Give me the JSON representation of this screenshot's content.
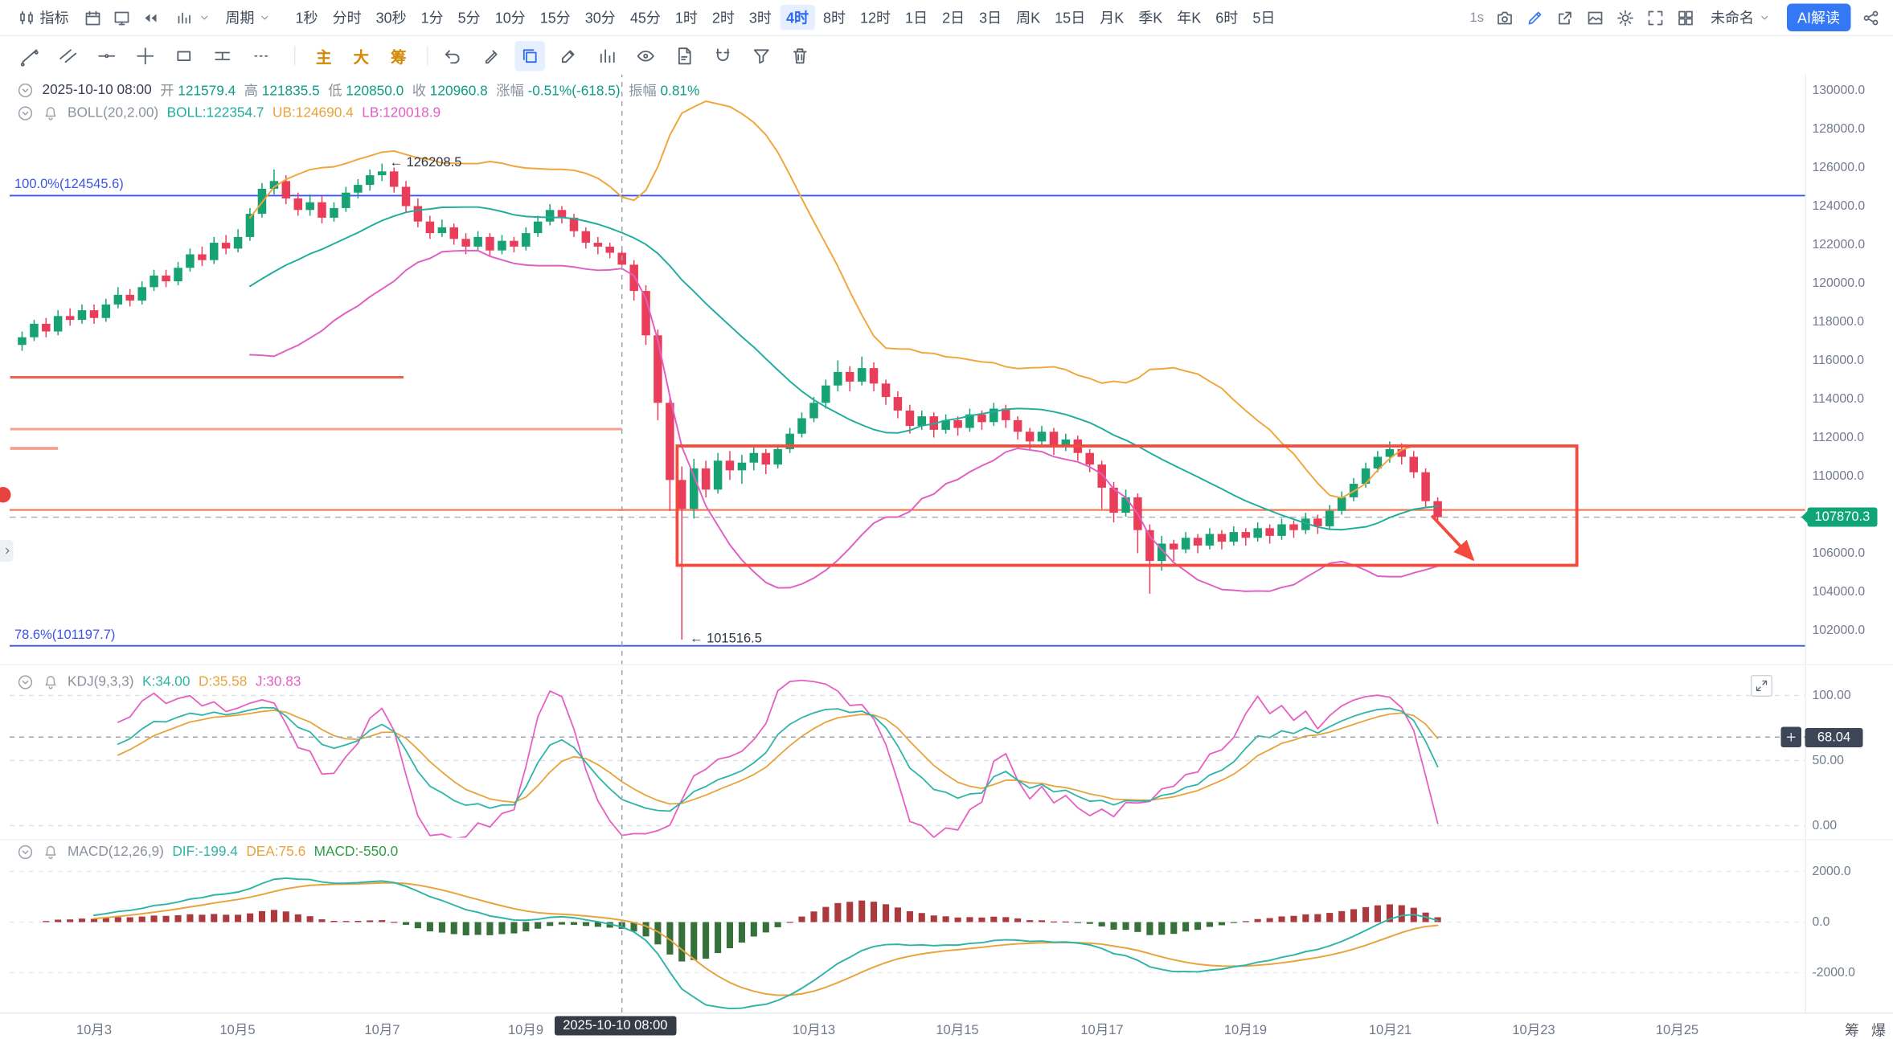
{
  "colors": {
    "up": "#16a273",
    "down": "#ea3d5a",
    "boll_mb": "#1fae9c",
    "boll_ub": "#f0a63a",
    "boll_lb": "#e05fc4",
    "kdj_k": "#2eb5a8",
    "kdj_d": "#e8a33c",
    "kdj_j": "#e75fc3",
    "macd_dif": "#2eb5a8",
    "macd_dea": "#e8a33c",
    "macd_up_bar": "#ab3a3e",
    "macd_down_bar": "#36703a",
    "accent_blue": "#3478f6",
    "drawing_red": "#f5493d",
    "fib_blue": "#3b55e6",
    "price_badge_bg": "#10a576"
  },
  "top_toolbar": {
    "indicator_label": "指标",
    "left_icons": [
      "calendar-icon",
      "monitor-icon",
      "rewind-icon"
    ],
    "period_label": "周期",
    "timeframes": [
      "1秒",
      "分时",
      "30秒",
      "1分",
      "5分",
      "10分",
      "15分",
      "30分",
      "45分",
      "1时",
      "2时",
      "3时",
      "4时",
      "8时",
      "12时",
      "1日",
      "2日",
      "3日",
      "周K",
      "15日",
      "月K",
      "季K",
      "年K",
      "6时",
      "5日"
    ],
    "selected_timeframe": "4时",
    "right": {
      "resolution_label": "1s",
      "icons": [
        "camera-icon",
        "pencil-icon",
        "popout-icon",
        "image-icon",
        "gear-icon",
        "expand-icon",
        "grid-icon"
      ],
      "layout_name": "未命名",
      "ai_button": "AI解读",
      "share_icon": "share-icon"
    }
  },
  "drawing_toolbar": {
    "icons_group1": [
      "trend-line-icon",
      "parallel-lines-icon",
      "horizontal-line-icon",
      "cross-line-icon",
      "rectangle-icon",
      "ruler-icon",
      "more-icon"
    ],
    "text_buttons": [
      "主",
      "大",
      "筹"
    ],
    "icons_group2": [
      "undo-icon",
      "marker-icon",
      "layers-icon",
      "edit-icon",
      "bar-chart-icon",
      "eye-icon",
      "note-icon",
      "magnet-icon",
      "filter-icon",
      "trash-icon"
    ],
    "active_icon": "layers-icon"
  },
  "main_legend": {
    "datetime": "2025-10-10 08:00",
    "fields": [
      {
        "label": "开",
        "value": "121579.4"
      },
      {
        "label": "高",
        "value": "121835.5"
      },
      {
        "label": "低",
        "value": "120850.0"
      },
      {
        "label": "收",
        "value": "120960.8"
      },
      {
        "label": "涨幅",
        "value": "-0.51%(-618.5)"
      },
      {
        "label": "振幅",
        "value": "0.81%"
      }
    ],
    "boll": {
      "name": "BOLL(20,2.00)",
      "mb_label": "BOLL:122354.7",
      "ub_label": "UB:124690.4",
      "lb_label": "LB:120018.9"
    }
  },
  "kdj_pane": {
    "name": "KDJ(9,3,3)",
    "k": "K:34.00",
    "d": "D:35.58",
    "j": "J:30.83",
    "axis": [
      {
        "text": "100.00",
        "v": 100
      },
      {
        "text": "50.00",
        "v": 50
      },
      {
        "text": "0.00",
        "v": 0
      }
    ],
    "crosshair_value": "68.04"
  },
  "macd_pane": {
    "name": "MACD(12,26,9)",
    "dif": "DIF:-199.4",
    "dea": "DEA:75.6",
    "macd": "MACD:-550.0",
    "axis": [
      {
        "text": "2000.0",
        "v": 2000
      },
      {
        "text": "0.0",
        "v": 0
      },
      {
        "text": "-2000.0",
        "v": -2000
      }
    ]
  },
  "price_axis": [
    "130000.0",
    "128000.0",
    "126000.0",
    "124000.0",
    "122000.0",
    "120000.0",
    "118000.0",
    "116000.0",
    "114000.0",
    "112000.0",
    "110000.0",
    "106000.0",
    "104000.0",
    "102000.0"
  ],
  "last_price": "107870.3",
  "time_axis": {
    "labels": [
      {
        "text": "10月3",
        "idx": 6
      },
      {
        "text": "10月5",
        "idx": 18
      },
      {
        "text": "10月7",
        "idx": 30
      },
      {
        "text": "10月9",
        "idx": 42
      },
      {
        "text": "10月13",
        "idx": 66
      },
      {
        "text": "10月15",
        "idx": 78
      },
      {
        "text": "10月17",
        "idx": 90
      },
      {
        "text": "10月19",
        "idx": 102
      },
      {
        "text": "10月21",
        "idx": 114
      },
      {
        "text": "10月23",
        "idx": 126
      },
      {
        "text": "10月25",
        "idx": 138
      }
    ],
    "crosshair": {
      "label": "2025-10-10 08:00",
      "idx": 50
    }
  },
  "corner_labels": [
    "筹",
    "爆"
  ],
  "annotations": [
    {
      "text": "← 126208.5",
      "idx": 30,
      "price": 126208.5
    },
    {
      "text": "← 101516.5",
      "idx": 55,
      "price": 101516.5
    }
  ],
  "fib_levels": [
    {
      "label": "100.0%(124545.6)",
      "price": 124545.6
    },
    {
      "label": "78.6%(101197.7)",
      "price": 101197.7
    }
  ],
  "chart_data": {
    "type": "candlestick",
    "interval": "4h",
    "crosshair_candle_idx": 50,
    "candles": [
      [
        116800,
        117500,
        116500,
        117200
      ],
      [
        117200,
        118100,
        117000,
        117900
      ],
      [
        117900,
        118200,
        117200,
        117500
      ],
      [
        117500,
        118600,
        117300,
        118300
      ],
      [
        118300,
        118700,
        117800,
        118100
      ],
      [
        118100,
        118900,
        117900,
        118600
      ],
      [
        118600,
        118900,
        117900,
        118200
      ],
      [
        118200,
        119200,
        118000,
        118900
      ],
      [
        118900,
        119800,
        118700,
        119400
      ],
      [
        119400,
        119700,
        118800,
        119100
      ],
      [
        119100,
        120100,
        118900,
        119800
      ],
      [
        119800,
        120700,
        119600,
        120400
      ],
      [
        120400,
        120700,
        119800,
        120100
      ],
      [
        120100,
        121100,
        119900,
        120800
      ],
      [
        120800,
        121800,
        120600,
        121500
      ],
      [
        121500,
        121900,
        120900,
        121200
      ],
      [
        121200,
        122400,
        121000,
        122100
      ],
      [
        122100,
        122500,
        121500,
        121800
      ],
      [
        121800,
        122800,
        121600,
        122400
      ],
      [
        122400,
        123900,
        122200,
        123600
      ],
      [
        123600,
        125200,
        123400,
        124900
      ],
      [
        124900,
        125900,
        124600,
        125300
      ],
      [
        125300,
        125600,
        124100,
        124400
      ],
      [
        124400,
        124700,
        123500,
        123800
      ],
      [
        123800,
        124600,
        123500,
        124200
      ],
      [
        124200,
        124500,
        123100,
        123400
      ],
      [
        123400,
        124200,
        123200,
        123900
      ],
      [
        123900,
        125000,
        123700,
        124700
      ],
      [
        124700,
        125400,
        124400,
        125100
      ],
      [
        125100,
        125900,
        124800,
        125600
      ],
      [
        125600,
        126208.5,
        125300,
        125800
      ],
      [
        125800,
        126000,
        124700,
        125000
      ],
      [
        125000,
        125300,
        123700,
        124000
      ],
      [
        124000,
        124400,
        122900,
        123200
      ],
      [
        123200,
        123500,
        122300,
        122600
      ],
      [
        122600,
        123300,
        122400,
        122900
      ],
      [
        122900,
        123100,
        122000,
        122300
      ],
      [
        122300,
        122600,
        121500,
        121900
      ],
      [
        121900,
        122700,
        121700,
        122400
      ],
      [
        122400,
        122600,
        121400,
        121700
      ],
      [
        121700,
        122500,
        121500,
        122200
      ],
      [
        122200,
        122400,
        121600,
        121900
      ],
      [
        121900,
        122900,
        121700,
        122600
      ],
      [
        122600,
        123500,
        122400,
        123200
      ],
      [
        123200,
        124100,
        123000,
        123800
      ],
      [
        123800,
        124000,
        123100,
        123400
      ],
      [
        123400,
        123600,
        122400,
        122700
      ],
      [
        122700,
        122900,
        121800,
        122100
      ],
      [
        122100,
        122400,
        121500,
        121900
      ],
      [
        121900,
        122100,
        121300,
        121579.4
      ],
      [
        121579.4,
        121835.5,
        120850.0,
        120960.8
      ],
      [
        120960.8,
        121200,
        119100,
        119600
      ],
      [
        119600,
        119900,
        116800,
        117300
      ],
      [
        117300,
        117600,
        112900,
        113800
      ],
      [
        113800,
        114200,
        108200,
        109800
      ],
      [
        109800,
        110500,
        101516.5,
        108300
      ],
      [
        108300,
        110900,
        107800,
        110400
      ],
      [
        110400,
        110800,
        108900,
        109300
      ],
      [
        109300,
        111200,
        109100,
        110800
      ],
      [
        110800,
        111300,
        109800,
        110300
      ],
      [
        110300,
        111100,
        109600,
        110700
      ],
      [
        110700,
        111500,
        110300,
        111200
      ],
      [
        111200,
        111400,
        110100,
        110600
      ],
      [
        110600,
        111600,
        110400,
        111400
      ],
      [
        111400,
        112500,
        111200,
        112200
      ],
      [
        112200,
        113300,
        112000,
        113000
      ],
      [
        113000,
        114100,
        112800,
        113800
      ],
      [
        113800,
        115000,
        113500,
        114700
      ],
      [
        114700,
        116000,
        114400,
        115400
      ],
      [
        115400,
        115700,
        114400,
        114900
      ],
      [
        114900,
        116200,
        114700,
        115600
      ],
      [
        115600,
        115900,
        114400,
        114800
      ],
      [
        114800,
        115000,
        113700,
        114100
      ],
      [
        114100,
        114400,
        113000,
        113400
      ],
      [
        113400,
        113700,
        112200,
        112600
      ],
      [
        112600,
        113400,
        112400,
        113100
      ],
      [
        113100,
        113300,
        112000,
        112400
      ],
      [
        112400,
        113200,
        112200,
        112900
      ],
      [
        112900,
        113100,
        112100,
        112500
      ],
      [
        112500,
        113500,
        112300,
        113200
      ],
      [
        113200,
        113400,
        112400,
        112800
      ],
      [
        112800,
        113800,
        112600,
        113500
      ],
      [
        113500,
        113700,
        112500,
        112900
      ],
      [
        112900,
        113100,
        111900,
        112300
      ],
      [
        112300,
        112500,
        111400,
        111800
      ],
      [
        111800,
        112600,
        111600,
        112300
      ],
      [
        112300,
        112500,
        111100,
        111500
      ],
      [
        111500,
        112200,
        111300,
        111900
      ],
      [
        111900,
        112100,
        110800,
        111200
      ],
      [
        111200,
        111400,
        110200,
        110600
      ],
      [
        110600,
        110800,
        108300,
        109400
      ],
      [
        109400,
        109700,
        107600,
        108100
      ],
      [
        108100,
        109300,
        107900,
        108900
      ],
      [
        108900,
        109100,
        106000,
        107200
      ],
      [
        107200,
        107500,
        103900,
        105600
      ],
      [
        105600,
        106900,
        105100,
        106500
      ],
      [
        106500,
        106700,
        105600,
        106200
      ],
      [
        106200,
        107100,
        106000,
        106800
      ],
      [
        106800,
        107000,
        106000,
        106400
      ],
      [
        106400,
        107300,
        106200,
        107000
      ],
      [
        107000,
        107200,
        106200,
        106600
      ],
      [
        106600,
        107400,
        106400,
        107100
      ],
      [
        107100,
        107300,
        106400,
        106800
      ],
      [
        106800,
        107600,
        106600,
        107300
      ],
      [
        107300,
        107500,
        106500,
        106900
      ],
      [
        106900,
        107800,
        106700,
        107500
      ],
      [
        107500,
        107700,
        106800,
        107200
      ],
      [
        107200,
        108100,
        107000,
        107800
      ],
      [
        107800,
        108000,
        107000,
        107400
      ],
      [
        107400,
        108500,
        107200,
        108200
      ],
      [
        108200,
        109200,
        108000,
        108900
      ],
      [
        108900,
        109900,
        108700,
        109600
      ],
      [
        109600,
        110700,
        109400,
        110400
      ],
      [
        110400,
        111300,
        110200,
        111000
      ],
      [
        111000,
        111800,
        110700,
        111400
      ],
      [
        111400,
        111700,
        110600,
        111000
      ],
      [
        111000,
        111300,
        109900,
        110200
      ],
      [
        110200,
        110400,
        108400,
        108700
      ],
      [
        108700,
        108900,
        107600,
        107870.3
      ]
    ],
    "indicators": {
      "boll": {
        "period": 20,
        "mult": 2
      },
      "kdj": [
        9,
        3,
        3
      ],
      "macd": [
        12,
        26,
        9
      ]
    },
    "drawings": {
      "horizontal_segments": [
        {
          "price": 115125,
          "idx1": -1,
          "idx2": 31.8,
          "color": "#f2604e",
          "width": 2
        },
        {
          "price": 112437,
          "idx1": -1,
          "idx2": 50,
          "color": "#f2a28f",
          "width": 2
        },
        {
          "price": 111437,
          "idx1": -1,
          "idx2": 3,
          "color": "#f2a28f",
          "width": 2.5
        }
      ],
      "horizontal_line": {
        "price": 108245,
        "color": "#f07a5a",
        "width": 1.5
      },
      "rectangle": {
        "idx1": 54.6,
        "idx2": 129.6,
        "price_top": 111560,
        "price_bottom": 105370,
        "color": "#f5493d",
        "width": 2.5
      },
      "arrow": {
        "idx1": 117.5,
        "price1": 107950,
        "idx2": 120.9,
        "price2": 105700,
        "color": "#f5493d",
        "width": 2.5
      }
    }
  }
}
